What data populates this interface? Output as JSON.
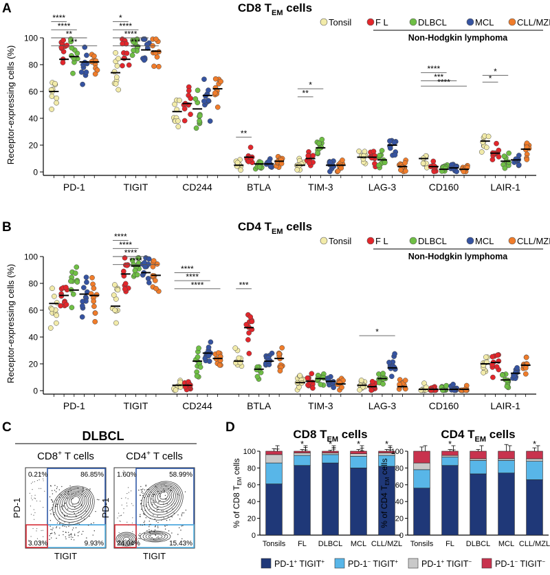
{
  "panel_letters": [
    "A",
    "B",
    "C",
    "D"
  ],
  "colors": {
    "tonsil": "#f2eba9",
    "fl": "#e3262b",
    "dlbcl": "#6fbf45",
    "mcl": "#3553a1",
    "cll": "#f07c2a",
    "dp": "#1f3878",
    "pdneg_tigitpos": "#58b6e8",
    "pdpos_tigitneg": "#c9c9c9",
    "dn": "#c8334e"
  },
  "legend": {
    "tonsil": "Tonsil",
    "fl": "F L",
    "dlbcl": "DLBCL",
    "mcl": "MCL",
    "cll": "CLL/MZL",
    "nhl": "Non-Hodgkin lymphoma"
  },
  "chart_data": [
    {
      "id": "A",
      "type": "scatter",
      "title": "CD8 T",
      "title_sub": "EM",
      "title_suffix": "cells",
      "ylabel": "Receptor-expressing cells (%)",
      "ylim": [
        0,
        100
      ],
      "yticks": [
        "0",
        "20",
        "40",
        "60",
        "80",
        "100"
      ],
      "categories": [
        "PD-1",
        "TIGIT",
        "CD244",
        "BTLA",
        "TIM-3",
        "LAG-3",
        "CD160",
        "LAIR-1"
      ],
      "series": [
        {
          "name": "Tonsil",
          "medians": [
            60,
            74,
            45,
            5,
            5,
            11,
            10,
            23
          ]
        },
        {
          "name": "FL",
          "medians": [
            84,
            84,
            51,
            11,
            10,
            11,
            4,
            14
          ]
        },
        {
          "name": "DLBCL",
          "medians": [
            86,
            94,
            47,
            6,
            18,
            9,
            2,
            8
          ]
        },
        {
          "name": "MCL",
          "medians": [
            82,
            91,
            57,
            6,
            5,
            20,
            3,
            9
          ]
        },
        {
          "name": "CLL/MZL",
          "medians": [
            82,
            90,
            62,
            8,
            5,
            4,
            2,
            17
          ]
        }
      ],
      "significance": [
        {
          "category": "PD-1",
          "to_group": 2,
          "label": "****",
          "height": 112
        },
        {
          "category": "PD-1",
          "to_group": 3,
          "label": "****",
          "height": 106
        },
        {
          "category": "PD-1",
          "to_group": 4,
          "label": "**",
          "height": 100
        },
        {
          "category": "PD-1",
          "to_group": 5,
          "label": "**",
          "height": 94
        },
        {
          "category": "TIGIT",
          "to_group": 2,
          "label": "*",
          "height": 112
        },
        {
          "category": "TIGIT",
          "to_group": 3,
          "label": "****",
          "height": 106
        },
        {
          "category": "TIGIT",
          "to_group": 4,
          "label": "****",
          "height": 100
        },
        {
          "category": "TIGIT",
          "to_group": 5,
          "label": "***",
          "height": 94
        },
        {
          "category": "BTLA",
          "to_group": 2,
          "label": "**",
          "height": 26
        },
        {
          "category": "TIM-3",
          "to_group": 3,
          "label": "*",
          "height": 62
        },
        {
          "category": "TIM-3",
          "to_group": 2,
          "label": "**",
          "height": 56
        },
        {
          "category": "CD160",
          "to_group": 3,
          "label": "****",
          "height": 74
        },
        {
          "category": "CD160",
          "to_group": 4,
          "label": "***",
          "height": 68
        },
        {
          "category": "CD160",
          "to_group": 5,
          "label": "****",
          "height": 64
        },
        {
          "category": "LAIR-1",
          "to_group": 3,
          "label": "*",
          "height": 72
        },
        {
          "category": "LAIR-1",
          "to_group": 2,
          "label": "*",
          "height": 67
        }
      ]
    },
    {
      "id": "B",
      "type": "scatter",
      "title": "CD4 T",
      "title_sub": "EM",
      "title_suffix": "cells",
      "ylabel": "Receptor-expressing cells (%)",
      "ylim": [
        0,
        100
      ],
      "yticks": [
        "0",
        "20",
        "40",
        "60",
        "80",
        "100"
      ],
      "categories": [
        "PD-1",
        "TIGIT",
        "CD244",
        "BTLA",
        "TIM-3",
        "LAG-3",
        "CD160",
        "LAIR-1"
      ],
      "series": [
        {
          "name": "Tonsil",
          "medians": [
            65,
            63,
            4,
            22,
            6,
            4,
            1,
            20
          ]
        },
        {
          "name": "FL",
          "medians": [
            71,
            87,
            4,
            47,
            7,
            3,
            1,
            21
          ]
        },
        {
          "name": "DLBCL",
          "medians": [
            75,
            93,
            22,
            16,
            9,
            9,
            1,
            8
          ]
        },
        {
          "name": "MCL",
          "medians": [
            72,
            88,
            28,
            22,
            7,
            17,
            1,
            13
          ]
        },
        {
          "name": "CLL/MZL",
          "medians": [
            71,
            86,
            24,
            24,
            5,
            3,
            1,
            19
          ]
        }
      ],
      "significance": [
        {
          "category": "TIGIT",
          "to_group": 2,
          "label": "****",
          "height": 112
        },
        {
          "category": "TIGIT",
          "to_group": 3,
          "label": "****",
          "height": 106
        },
        {
          "category": "TIGIT",
          "to_group": 4,
          "label": "****",
          "height": 100
        },
        {
          "category": "TIGIT",
          "to_group": 5,
          "label": "****",
          "height": 94
        },
        {
          "category": "CD244",
          "to_group": 3,
          "label": "****",
          "height": 88
        },
        {
          "category": "CD244",
          "to_group": 4,
          "label": "****",
          "height": 82
        },
        {
          "category": "CD244",
          "to_group": 5,
          "label": "****",
          "height": 76
        },
        {
          "category": "BTLA",
          "to_group": 2,
          "label": "***",
          "height": 76
        },
        {
          "category": "LAG-3",
          "to_group": 4,
          "label": "*",
          "height": 41
        }
      ]
    },
    {
      "id": "D1",
      "type": "bar",
      "stacked": true,
      "title": "CD8 T",
      "title_sub": "EM",
      "title_suffix": "cells",
      "ylabel": "% of CD8 T",
      "ylabel_sub": "EM",
      "ylabel_suffix": "cells",
      "ylim": [
        0,
        100
      ],
      "yticks": [
        "0",
        "20",
        "40",
        "60",
        "80",
        "100"
      ],
      "categories": [
        "Tonsils",
        "FL",
        "DLBCL",
        "MCL",
        "CLL/MZL"
      ],
      "series": [
        {
          "name": "PD-1+ TIGIT+",
          "values": [
            61,
            83,
            86,
            80,
            82
          ]
        },
        {
          "name": "PD-1- TIGIT+",
          "values": [
            25,
            12,
            10,
            14,
            13
          ]
        },
        {
          "name": "PD-1+ TIGIT-",
          "values": [
            10,
            3,
            2,
            3,
            3
          ]
        },
        {
          "name": "PD-1- TIGIT-",
          "values": [
            4,
            2,
            2,
            3,
            2
          ]
        }
      ],
      "error_tops": [
        103,
        102,
        101,
        102,
        102
      ],
      "significance_labels": [
        "",
        "*",
        "*",
        "*",
        "*"
      ]
    },
    {
      "id": "D2",
      "type": "bar",
      "stacked": true,
      "title": "CD4 T",
      "title_sub": "EM",
      "title_suffix": "cells",
      "ylabel": "% of CD4 T",
      "ylabel_sub": "EM",
      "ylabel_suffix": "cells",
      "ylim": [
        0,
        100
      ],
      "yticks": [
        "0",
        "20",
        "40",
        "60",
        "80",
        "100"
      ],
      "categories": [
        "Tonsils",
        "FL",
        "DLBCL",
        "MCL",
        "CLL/MZL"
      ],
      "series": [
        {
          "name": "PD-1+ TIGIT+",
          "values": [
            56,
            83,
            73,
            74,
            66
          ]
        },
        {
          "name": "PD-1- TIGIT+",
          "values": [
            22,
            10,
            16,
            15,
            22
          ]
        },
        {
          "name": "PD-1+ TIGIT-",
          "values": [
            8,
            2,
            2,
            2,
            3
          ]
        },
        {
          "name": "PD-1- TIGIT-",
          "values": [
            14,
            5,
            9,
            9,
            9
          ]
        }
      ],
      "error_tops": [
        105,
        102,
        102,
        108,
        104
      ],
      "significance_labels": [
        "",
        "*",
        "",
        "",
        "*"
      ]
    }
  ],
  "panel_c": {
    "title": "DLBCL",
    "plots": [
      {
        "name": "CD8",
        "sup": "+",
        "suffix": "T cells",
        "q_ul": "0.21%",
        "q_ur": "86.85%",
        "q_ll": "3.03%",
        "q_lr": "9.93%"
      },
      {
        "name": "CD4",
        "sup": "+",
        "suffix": "T cells",
        "q_ul": "1.60%",
        "q_ur": "58.99%",
        "q_ll": "24.04%",
        "q_lr": "15.43%"
      }
    ],
    "xlabel": "TIGIT",
    "ylabel": "PD-1"
  },
  "panel_d_legend": [
    {
      "a": "PD-1",
      "a_sup": "+",
      "b": "TIGIT",
      "b_sup": "+"
    },
    {
      "a": "PD-1",
      "a_sup": "−",
      "b": "TIGIT",
      "b_sup": "+"
    },
    {
      "a": "PD-1",
      "a_sup": "+",
      "b": "TIGIT",
      "b_sup": "−"
    },
    {
      "a": "PD-1",
      "a_sup": "−",
      "b": "TIGIT",
      "b_sup": "−"
    }
  ]
}
